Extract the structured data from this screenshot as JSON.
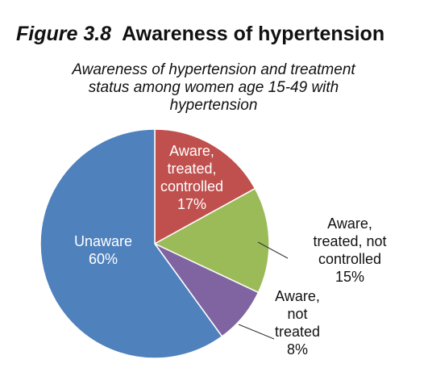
{
  "figure": {
    "number": "Figure 3.8",
    "title": "Awareness of hypertension"
  },
  "chart_data": {
    "type": "pie",
    "title": "Awareness of hypertension and treatment\nstatus among women age 15-49 with\nhypertension",
    "slices": [
      {
        "name": "Aware, treated, controlled",
        "value": 17,
        "display": "17%",
        "color": "#c0504d",
        "label_lines": [
          "Aware,",
          "treated,",
          "controlled",
          "17%"
        ]
      },
      {
        "name": "Aware, treated, not controlled",
        "value": 15,
        "display": "15%",
        "color": "#9bbb59",
        "label_lines": [
          "Aware,",
          "treated, not",
          "controlled",
          "15%"
        ]
      },
      {
        "name": "Aware, not treated",
        "value": 8,
        "display": "8%",
        "color": "#8064a2",
        "label_lines": [
          "Aware,",
          "not",
          "treated",
          "8%"
        ]
      },
      {
        "name": "Unaware",
        "value": 60,
        "display": "60%",
        "color": "#4f81bd",
        "label_lines": [
          "Unaware",
          "60%"
        ]
      }
    ],
    "start_angle_deg": 0,
    "direction": "clockwise",
    "legend": "none"
  }
}
